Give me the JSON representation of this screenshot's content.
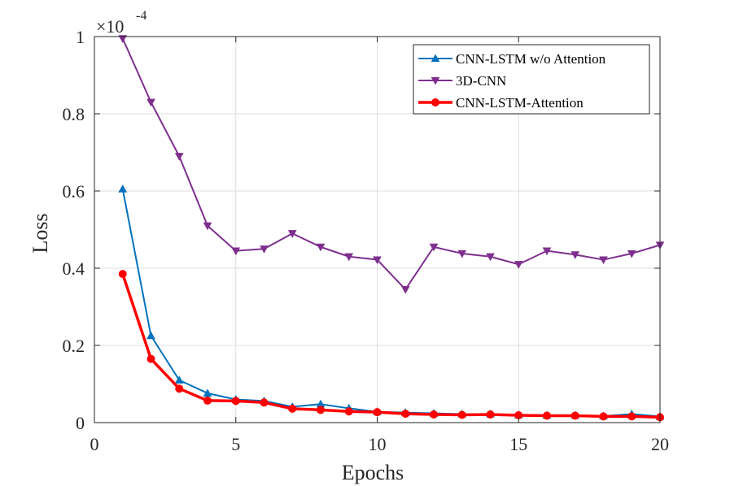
{
  "chart_data": {
    "type": "line",
    "title": "",
    "xlabel": "Epochs",
    "ylabel": "Loss",
    "xlim": [
      0,
      20
    ],
    "ylim": [
      0,
      1
    ],
    "x_ticks": [
      0,
      5,
      10,
      15,
      20
    ],
    "y_ticks": [
      0,
      0.2,
      0.4,
      0.6,
      0.8,
      1
    ],
    "x_tick_labels": [
      "0",
      "5",
      "10",
      "15",
      "20"
    ],
    "y_tick_labels": [
      "0",
      "0.2",
      "0.4",
      "0.6",
      "0.8",
      "1"
    ],
    "y_scale_prefix": "×10",
    "y_scale_exponent": "-4",
    "grid": true,
    "legend_position": "top-right",
    "x": [
      1,
      2,
      3,
      4,
      5,
      6,
      7,
      8,
      9,
      10,
      11,
      12,
      13,
      14,
      15,
      16,
      17,
      18,
      19,
      20
    ],
    "series": [
      {
        "name": "CNN-LSTM w/o Attention",
        "color": "#0072BD",
        "marker": "triangle-up",
        "values": [
          0.605,
          0.225,
          0.11,
          0.076,
          0.06,
          0.056,
          0.041,
          0.048,
          0.037,
          0.028,
          0.026,
          0.024,
          0.022,
          0.022,
          0.02,
          0.019,
          0.019,
          0.017,
          0.022,
          0.016
        ]
      },
      {
        "name": "3D-CNN",
        "color": "#7E2F8E",
        "marker": "triangle-down",
        "values": [
          0.995,
          0.83,
          0.69,
          0.51,
          0.445,
          0.45,
          0.49,
          0.455,
          0.43,
          0.422,
          0.345,
          0.455,
          0.438,
          0.43,
          0.41,
          0.445,
          0.435,
          0.422,
          0.438,
          0.46
        ]
      },
      {
        "name": "CNN-LSTM-Attention",
        "color": "#FF0000",
        "marker": "circle",
        "values": [
          0.385,
          0.165,
          0.088,
          0.057,
          0.056,
          0.052,
          0.036,
          0.033,
          0.029,
          0.027,
          0.023,
          0.021,
          0.02,
          0.021,
          0.019,
          0.018,
          0.018,
          0.016,
          0.016,
          0.014
        ]
      }
    ]
  }
}
